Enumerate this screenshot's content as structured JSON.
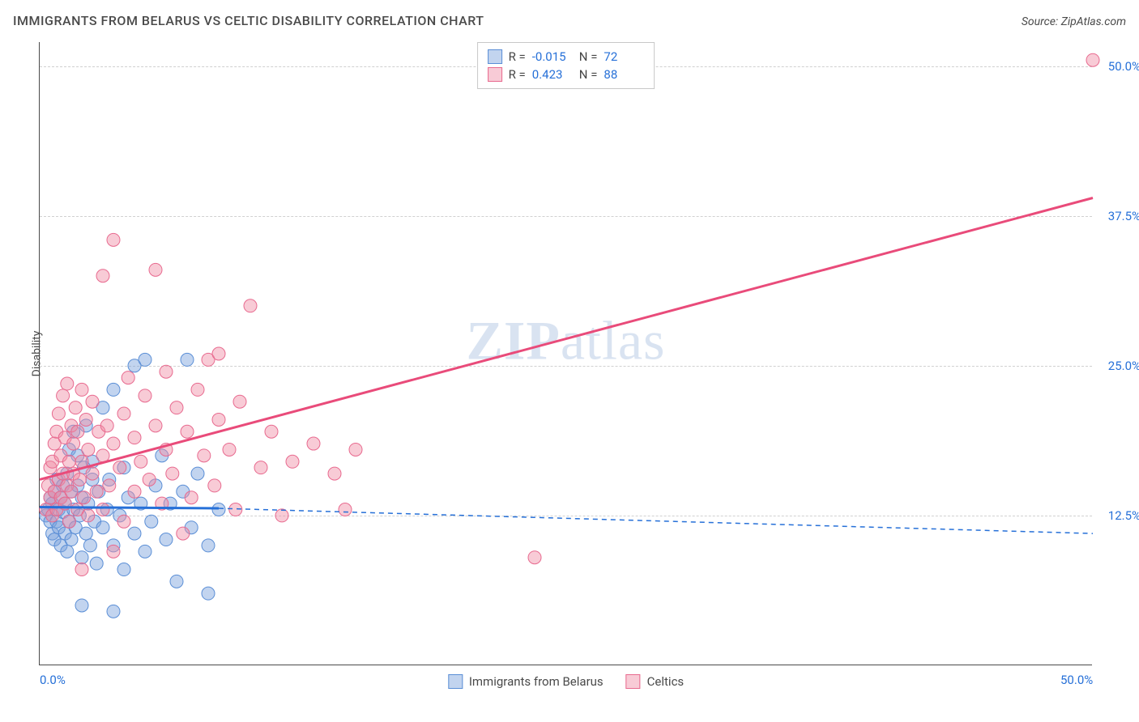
{
  "title": "IMMIGRANTS FROM BELARUS VS CELTIC DISABILITY CORRELATION CHART",
  "source_label": "Source: ZipAtlas.com",
  "y_axis_title": "Disability",
  "watermark": {
    "bold": "ZIP",
    "rest": "atlas"
  },
  "chart": {
    "type": "scatter",
    "xlim": [
      0,
      50
    ],
    "ylim": [
      0,
      52
    ],
    "x_ticks": [
      {
        "value": 0,
        "label": "0.0%"
      },
      {
        "value": 50,
        "label": "50.0%"
      }
    ],
    "y_ticks": [
      {
        "value": 12.5,
        "label": "12.5%"
      },
      {
        "value": 25.0,
        "label": "25.0%"
      },
      {
        "value": 37.5,
        "label": "37.5%"
      },
      {
        "value": 50.0,
        "label": "50.0%"
      }
    ],
    "background_color": "#ffffff",
    "grid_color": "#d0d0d0",
    "axis_color": "#4a4a4a",
    "tick_label_color": "#2670d8",
    "marker_radius": 8,
    "marker_opacity": 0.45,
    "series": [
      {
        "id": "belarus",
        "label": "Immigrants from Belarus",
        "fill": "rgba(120,160,220,0.45)",
        "stroke": "#5a8ed6",
        "R": "-0.015",
        "N": "72",
        "trend": {
          "solid": {
            "x1": 0,
            "y1": 13.2,
            "x2": 8.5,
            "y2": 13.1,
            "color": "#2670d8",
            "width": 3
          },
          "dashed": {
            "x1": 8.5,
            "y1": 13.1,
            "x2": 50,
            "y2": 11.0,
            "color": "#2670d8",
            "width": 1.5,
            "dash": "6,5"
          }
        },
        "points": [
          [
            0.3,
            12.5
          ],
          [
            0.4,
            13.0
          ],
          [
            0.5,
            12.0
          ],
          [
            0.5,
            14.0
          ],
          [
            0.6,
            11.0
          ],
          [
            0.6,
            13.5
          ],
          [
            0.7,
            10.5
          ],
          [
            0.7,
            14.5
          ],
          [
            0.8,
            12.0
          ],
          [
            0.8,
            15.5
          ],
          [
            0.9,
            11.5
          ],
          [
            0.9,
            13.0
          ],
          [
            1.0,
            10.0
          ],
          [
            1.0,
            14.0
          ],
          [
            1.1,
            12.8
          ],
          [
            1.1,
            15.0
          ],
          [
            1.2,
            11.0
          ],
          [
            1.2,
            13.5
          ],
          [
            1.3,
            9.5
          ],
          [
            1.3,
            16.0
          ],
          [
            1.4,
            12.0
          ],
          [
            1.4,
            18.0
          ],
          [
            1.5,
            10.5
          ],
          [
            1.5,
            14.5
          ],
          [
            1.6,
            13.0
          ],
          [
            1.6,
            19.5
          ],
          [
            1.7,
            11.5
          ],
          [
            1.8,
            15.0
          ],
          [
            1.8,
            17.5
          ],
          [
            1.9,
            12.5
          ],
          [
            2.0,
            9.0
          ],
          [
            2.0,
            14.0
          ],
          [
            2.1,
            16.5
          ],
          [
            2.2,
            11.0
          ],
          [
            2.2,
            20.0
          ],
          [
            2.3,
            13.5
          ],
          [
            2.4,
            10.0
          ],
          [
            2.5,
            15.5
          ],
          [
            2.5,
            17.0
          ],
          [
            2.6,
            12.0
          ],
          [
            2.7,
            8.5
          ],
          [
            2.8,
            14.5
          ],
          [
            3.0,
            11.5
          ],
          [
            3.0,
            21.5
          ],
          [
            3.2,
            13.0
          ],
          [
            3.3,
            15.5
          ],
          [
            3.5,
            10.0
          ],
          [
            3.5,
            23.0
          ],
          [
            3.8,
            12.5
          ],
          [
            4.0,
            8.0
          ],
          [
            4.0,
            16.5
          ],
          [
            4.2,
            14.0
          ],
          [
            4.5,
            11.0
          ],
          [
            4.5,
            25.0
          ],
          [
            4.8,
            13.5
          ],
          [
            5.0,
            9.5
          ],
          [
            5.0,
            25.5
          ],
          [
            5.3,
            12.0
          ],
          [
            5.5,
            15.0
          ],
          [
            5.8,
            17.5
          ],
          [
            6.0,
            10.5
          ],
          [
            6.2,
            13.5
          ],
          [
            6.5,
            7.0
          ],
          [
            6.8,
            14.5
          ],
          [
            7.0,
            25.5
          ],
          [
            7.2,
            11.5
          ],
          [
            7.5,
            16.0
          ],
          [
            8.0,
            10.0
          ],
          [
            8.0,
            6.0
          ],
          [
            8.5,
            13.0
          ],
          [
            2.0,
            5.0
          ],
          [
            3.5,
            4.5
          ]
        ]
      },
      {
        "id": "celtics",
        "label": "Celtics",
        "fill": "rgba(240,140,165,0.45)",
        "stroke": "#e86a8f",
        "R": "0.423",
        "N": "88",
        "trend": {
          "solid": {
            "x1": 0,
            "y1": 15.5,
            "x2": 50,
            "y2": 39.0,
            "color": "#e94b7a",
            "width": 3
          }
        },
        "points": [
          [
            0.3,
            13.0
          ],
          [
            0.4,
            15.0
          ],
          [
            0.5,
            14.0
          ],
          [
            0.5,
            16.5
          ],
          [
            0.6,
            12.5
          ],
          [
            0.6,
            17.0
          ],
          [
            0.7,
            14.5
          ],
          [
            0.7,
            18.5
          ],
          [
            0.8,
            13.0
          ],
          [
            0.8,
            19.5
          ],
          [
            0.9,
            15.5
          ],
          [
            0.9,
            21.0
          ],
          [
            1.0,
            14.0
          ],
          [
            1.0,
            17.5
          ],
          [
            1.1,
            16.0
          ],
          [
            1.1,
            22.5
          ],
          [
            1.2,
            13.5
          ],
          [
            1.2,
            19.0
          ],
          [
            1.3,
            15.0
          ],
          [
            1.3,
            23.5
          ],
          [
            1.4,
            17.0
          ],
          [
            1.4,
            12.0
          ],
          [
            1.5,
            20.0
          ],
          [
            1.5,
            14.5
          ],
          [
            1.6,
            18.5
          ],
          [
            1.6,
            16.0
          ],
          [
            1.7,
            21.5
          ],
          [
            1.8,
            13.0
          ],
          [
            1.8,
            19.5
          ],
          [
            1.9,
            15.5
          ],
          [
            2.0,
            23.0
          ],
          [
            2.0,
            17.0
          ],
          [
            2.1,
            14.0
          ],
          [
            2.2,
            20.5
          ],
          [
            2.3,
            12.5
          ],
          [
            2.3,
            18.0
          ],
          [
            2.5,
            16.0
          ],
          [
            2.5,
            22.0
          ],
          [
            2.7,
            14.5
          ],
          [
            2.8,
            19.5
          ],
          [
            3.0,
            17.5
          ],
          [
            3.0,
            13.0
          ],
          [
            3.0,
            32.5
          ],
          [
            3.2,
            20.0
          ],
          [
            3.3,
            15.0
          ],
          [
            3.5,
            35.5
          ],
          [
            3.5,
            18.5
          ],
          [
            3.8,
            16.5
          ],
          [
            4.0,
            21.0
          ],
          [
            4.0,
            12.0
          ],
          [
            4.2,
            24.0
          ],
          [
            4.5,
            14.5
          ],
          [
            4.5,
            19.0
          ],
          [
            4.8,
            17.0
          ],
          [
            5.0,
            22.5
          ],
          [
            5.2,
            15.5
          ],
          [
            5.5,
            20.0
          ],
          [
            5.5,
            33.0
          ],
          [
            5.8,
            13.5
          ],
          [
            6.0,
            18.0
          ],
          [
            6.0,
            24.5
          ],
          [
            6.3,
            16.0
          ],
          [
            6.5,
            21.5
          ],
          [
            6.8,
            11.0
          ],
          [
            7.0,
            19.5
          ],
          [
            7.2,
            14.0
          ],
          [
            7.5,
            23.0
          ],
          [
            7.8,
            17.5
          ],
          [
            8.0,
            25.5
          ],
          [
            8.3,
            15.0
          ],
          [
            8.5,
            20.5
          ],
          [
            8.5,
            26.0
          ],
          [
            9.0,
            18.0
          ],
          [
            9.3,
            13.0
          ],
          [
            9.5,
            22.0
          ],
          [
            10.0,
            30.0
          ],
          [
            10.5,
            16.5
          ],
          [
            11.0,
            19.5
          ],
          [
            11.5,
            12.5
          ],
          [
            12.0,
            17.0
          ],
          [
            13.0,
            18.5
          ],
          [
            14.0,
            16.0
          ],
          [
            14.5,
            13.0
          ],
          [
            15.0,
            18.0
          ],
          [
            23.5,
            9.0
          ],
          [
            50.0,
            50.5
          ],
          [
            2.0,
            8.0
          ],
          [
            3.5,
            9.5
          ]
        ]
      }
    ]
  },
  "legend_top": {
    "rows": [
      {
        "swatch": "blue",
        "R_label": "R =",
        "R_val": "-0.015",
        "N_label": "N =",
        "N_val": "72"
      },
      {
        "swatch": "pink",
        "R_label": "R =",
        "R_val": "0.423",
        "N_label": "N =",
        "N_val": "88"
      }
    ]
  },
  "legend_bottom": [
    {
      "swatch": "blue",
      "label": "Immigrants from Belarus"
    },
    {
      "swatch": "pink",
      "label": "Celtics"
    }
  ]
}
